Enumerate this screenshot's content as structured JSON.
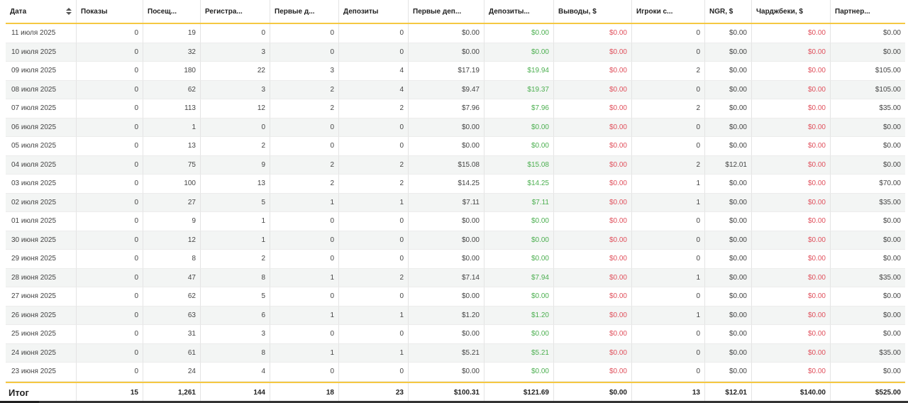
{
  "columns": [
    "Дата",
    "Показы",
    "Посещ...",
    "Регистра...",
    "Первые д...",
    "Депозиты",
    "Первые деп...",
    "Депозиты...",
    "Выводы, $",
    "Игроки с...",
    "NGR, $",
    "Чарджбеки, $",
    "Партнер..."
  ],
  "rows": [
    [
      "11 июля 2025",
      "0",
      "19",
      "0",
      "0",
      "0",
      "$0.00",
      "$0.00",
      "$0.00",
      "0",
      "$0.00",
      "$0.00",
      "$0.00"
    ],
    [
      "10 июля 2025",
      "0",
      "32",
      "3",
      "0",
      "0",
      "$0.00",
      "$0.00",
      "$0.00",
      "0",
      "$0.00",
      "$0.00",
      "$0.00"
    ],
    [
      "09 июля 2025",
      "0",
      "180",
      "22",
      "3",
      "4",
      "$17.19",
      "$19.94",
      "$0.00",
      "2",
      "$0.00",
      "$0.00",
      "$105.00"
    ],
    [
      "08 июля 2025",
      "0",
      "62",
      "3",
      "2",
      "4",
      "$9.47",
      "$19.37",
      "$0.00",
      "0",
      "$0.00",
      "$0.00",
      "$105.00"
    ],
    [
      "07 июля 2025",
      "0",
      "113",
      "12",
      "2",
      "2",
      "$7.96",
      "$7.96",
      "$0.00",
      "2",
      "$0.00",
      "$0.00",
      "$35.00"
    ],
    [
      "06 июля 2025",
      "0",
      "1",
      "0",
      "0",
      "0",
      "$0.00",
      "$0.00",
      "$0.00",
      "0",
      "$0.00",
      "$0.00",
      "$0.00"
    ],
    [
      "05 июля 2025",
      "0",
      "13",
      "2",
      "0",
      "0",
      "$0.00",
      "$0.00",
      "$0.00",
      "0",
      "$0.00",
      "$0.00",
      "$0.00"
    ],
    [
      "04 июля 2025",
      "0",
      "75",
      "9",
      "2",
      "2",
      "$15.08",
      "$15.08",
      "$0.00",
      "2",
      "$12.01",
      "$0.00",
      "$0.00"
    ],
    [
      "03 июля 2025",
      "0",
      "100",
      "13",
      "2",
      "2",
      "$14.25",
      "$14.25",
      "$0.00",
      "1",
      "$0.00",
      "$0.00",
      "$70.00"
    ],
    [
      "02 июля 2025",
      "0",
      "27",
      "5",
      "1",
      "1",
      "$7.11",
      "$7.11",
      "$0.00",
      "1",
      "$0.00",
      "$0.00",
      "$35.00"
    ],
    [
      "01 июля 2025",
      "0",
      "9",
      "1",
      "0",
      "0",
      "$0.00",
      "$0.00",
      "$0.00",
      "0",
      "$0.00",
      "$0.00",
      "$0.00"
    ],
    [
      "30 июня 2025",
      "0",
      "12",
      "1",
      "0",
      "0",
      "$0.00",
      "$0.00",
      "$0.00",
      "0",
      "$0.00",
      "$0.00",
      "$0.00"
    ],
    [
      "29 июня 2025",
      "0",
      "8",
      "2",
      "0",
      "0",
      "$0.00",
      "$0.00",
      "$0.00",
      "0",
      "$0.00",
      "$0.00",
      "$0.00"
    ],
    [
      "28 июня 2025",
      "0",
      "47",
      "8",
      "1",
      "2",
      "$7.14",
      "$7.94",
      "$0.00",
      "1",
      "$0.00",
      "$0.00",
      "$35.00"
    ],
    [
      "27 июня 2025",
      "0",
      "62",
      "5",
      "0",
      "0",
      "$0.00",
      "$0.00",
      "$0.00",
      "0",
      "$0.00",
      "$0.00",
      "$0.00"
    ],
    [
      "26 июня 2025",
      "0",
      "63",
      "6",
      "1",
      "1",
      "$1.20",
      "$1.20",
      "$0.00",
      "1",
      "$0.00",
      "$0.00",
      "$0.00"
    ],
    [
      "25 июня 2025",
      "0",
      "31",
      "3",
      "0",
      "0",
      "$0.00",
      "$0.00",
      "$0.00",
      "0",
      "$0.00",
      "$0.00",
      "$0.00"
    ],
    [
      "24 июня 2025",
      "0",
      "61",
      "8",
      "1",
      "1",
      "$5.21",
      "$5.21",
      "$0.00",
      "0",
      "$0.00",
      "$0.00",
      "$35.00"
    ],
    [
      "23 июня 2025",
      "0",
      "24",
      "4",
      "0",
      "0",
      "$0.00",
      "$0.00",
      "$0.00",
      "0",
      "$0.00",
      "$0.00",
      "$0.00"
    ]
  ],
  "totals": [
    "Итог",
    "15",
    "1,261",
    "144",
    "18",
    "23",
    "$100.31",
    "$121.69",
    "$0.00",
    "13",
    "$12.01",
    "$140.00",
    "$525.00"
  ],
  "colors": {
    "accent": "#f5c842",
    "positive": "#4caf50",
    "negative": "#e0505c",
    "alt_row": "#f3f5f4"
  },
  "column_value_colors": {
    "7": "green",
    "8": "red",
    "11": "red"
  },
  "icons": {
    "sort": "sort-icon"
  }
}
